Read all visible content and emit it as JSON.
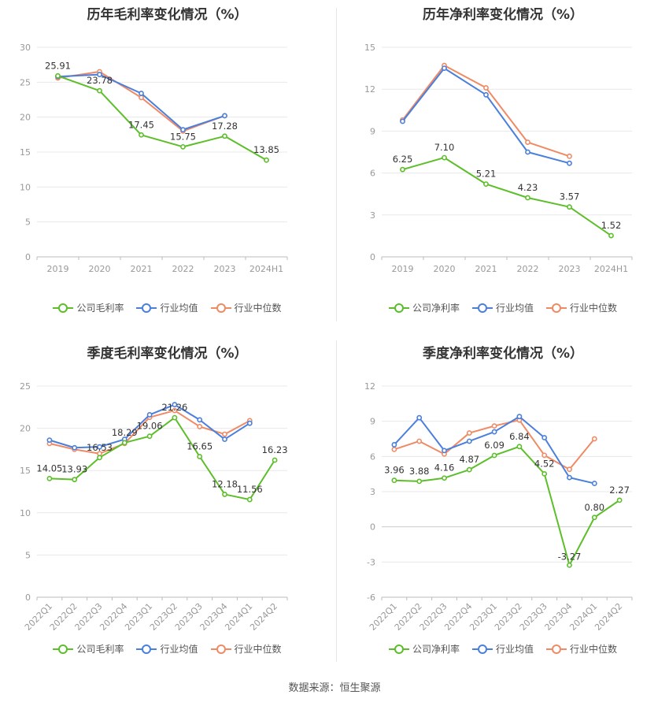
{
  "source": "数据来源：恒生聚源",
  "colors": {
    "company": "#5cbf2a",
    "avg": "#4a7fdc",
    "median": "#f08a65",
    "grid": "#e8e8e8",
    "axis": "#999999"
  },
  "chart_data": [
    {
      "type": "line",
      "title": "历年毛利率变化情况（%）",
      "categories": [
        "2019",
        "2020",
        "2021",
        "2022",
        "2023",
        "2024H1"
      ],
      "ylim": [
        0,
        30
      ],
      "yticks": [
        0,
        5,
        10,
        15,
        20,
        25,
        30
      ],
      "grid": true,
      "legend_position": "bottom",
      "series": [
        {
          "name": "公司毛利率",
          "key": "company",
          "values": [
            25.91,
            23.78,
            17.45,
            15.75,
            17.28,
            13.85
          ],
          "labels": [
            "25.91",
            "23.78",
            "17.45",
            "15.75",
            "17.28",
            "13.85"
          ]
        },
        {
          "name": "行业均值",
          "key": "avg",
          "values": [
            25.8,
            26.1,
            23.4,
            18.2,
            20.2,
            null
          ]
        },
        {
          "name": "行业中位数",
          "key": "median",
          "values": [
            25.6,
            26.5,
            22.8,
            18.0,
            20.2,
            null
          ]
        }
      ]
    },
    {
      "type": "line",
      "title": "历年净利率变化情况（%）",
      "categories": [
        "2019",
        "2020",
        "2021",
        "2022",
        "2023",
        "2024H1"
      ],
      "ylim": [
        0,
        15
      ],
      "yticks": [
        0,
        3,
        6,
        9,
        12,
        15
      ],
      "grid": true,
      "legend_position": "bottom",
      "series": [
        {
          "name": "公司净利率",
          "key": "company",
          "values": [
            6.25,
            7.1,
            5.21,
            4.23,
            3.57,
            1.52
          ],
          "labels": [
            "6.25",
            "7.10",
            "5.21",
            "4.23",
            "3.57",
            "1.52"
          ]
        },
        {
          "name": "行业均值",
          "key": "avg",
          "values": [
            9.7,
            13.5,
            11.6,
            7.5,
            6.7,
            null
          ]
        },
        {
          "name": "行业中位数",
          "key": "median",
          "values": [
            9.8,
            13.7,
            12.1,
            8.2,
            7.2,
            null
          ]
        }
      ]
    },
    {
      "type": "line",
      "title": "季度毛利率变化情况（%）",
      "categories": [
        "2022Q1",
        "2022Q2",
        "2022Q3",
        "2022Q4",
        "2023Q1",
        "2023Q2",
        "2023Q3",
        "2023Q4",
        "2024Q1",
        "2024Q2"
      ],
      "ylim": [
        0,
        25
      ],
      "yticks": [
        0,
        5,
        10,
        15,
        20,
        25
      ],
      "grid": true,
      "legend_position": "bottom",
      "series": [
        {
          "name": "公司毛利率",
          "key": "company",
          "values": [
            14.05,
            13.93,
            16.53,
            18.29,
            19.06,
            21.26,
            16.65,
            12.18,
            11.56,
            16.23
          ],
          "labels": [
            "14.05",
            "13.93",
            "16.53",
            "18.29",
            "19.06",
            "21.26",
            "16.65",
            "12.18",
            "11.56",
            "16.23"
          ]
        },
        {
          "name": "行业均值",
          "key": "avg",
          "values": [
            18.6,
            17.7,
            17.8,
            18.7,
            21.6,
            22.8,
            21.0,
            18.7,
            20.6,
            null
          ]
        },
        {
          "name": "行业中位数",
          "key": "median",
          "values": [
            18.2,
            17.5,
            17.0,
            18.2,
            21.3,
            22.1,
            20.2,
            19.3,
            20.9,
            null
          ]
        }
      ]
    },
    {
      "type": "line",
      "title": "季度净利率变化情况（%）",
      "categories": [
        "2022Q1",
        "2022Q2",
        "2022Q3",
        "2022Q4",
        "2023Q1",
        "2023Q2",
        "2023Q3",
        "2023Q4",
        "2024Q1",
        "2024Q2"
      ],
      "ylim": [
        -6,
        12
      ],
      "yticks": [
        -6,
        -3,
        0,
        3,
        6,
        9,
        12
      ],
      "grid": true,
      "legend_position": "bottom",
      "series": [
        {
          "name": "公司净利率",
          "key": "company",
          "values": [
            3.96,
            3.88,
            4.16,
            4.87,
            6.09,
            6.84,
            4.52,
            -3.27,
            0.8,
            2.27
          ],
          "labels": [
            "3.96",
            "3.88",
            "4.16",
            "4.87",
            "6.09",
            "6.84",
            "4.52",
            "-3.27",
            "0.80",
            "2.27"
          ]
        },
        {
          "name": "行业均值",
          "key": "avg",
          "values": [
            7.0,
            9.3,
            6.5,
            7.3,
            8.1,
            9.4,
            7.6,
            4.2,
            3.7,
            null
          ]
        },
        {
          "name": "行业中位数",
          "key": "median",
          "values": [
            6.6,
            7.3,
            6.2,
            8.0,
            8.6,
            9.1,
            6.1,
            4.9,
            7.5,
            null
          ]
        }
      ]
    }
  ]
}
